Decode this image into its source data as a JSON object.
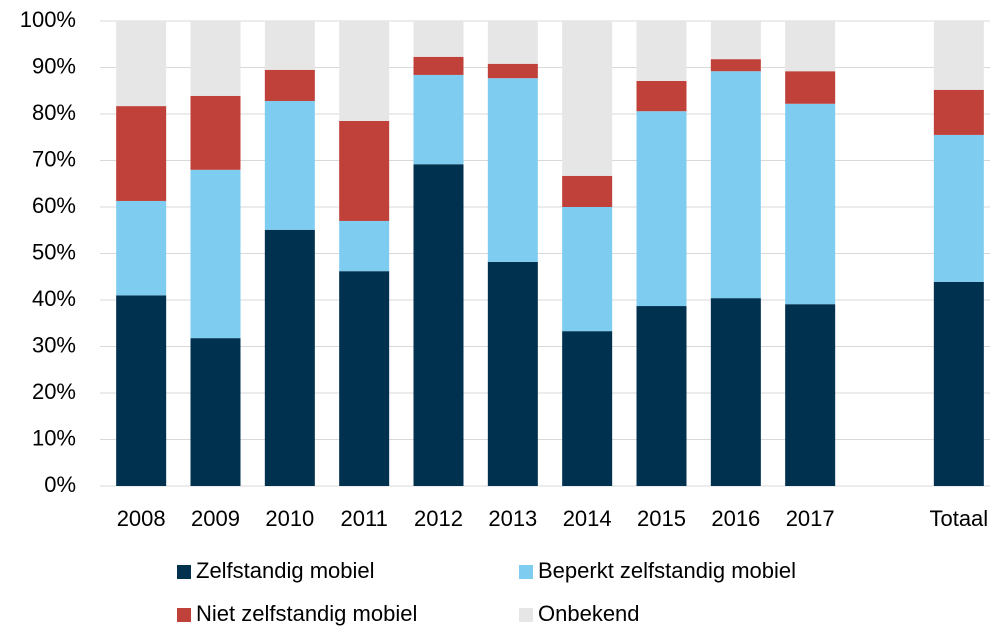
{
  "chart_data": {
    "type": "stacked_bar",
    "categories": [
      "2008",
      "2009",
      "2010",
      "2011",
      "2012",
      "2013",
      "2014",
      "2015",
      "2016",
      "2017",
      null,
      "Totaal"
    ],
    "series": [
      {
        "name": "Zelfstandig mobiel",
        "color": "#00314f",
        "values": [
          41.0,
          31.8,
          55.1,
          46.2,
          69.2,
          48.2,
          33.3,
          38.7,
          40.4,
          39.1,
          null,
          43.9
        ]
      },
      {
        "name": "Beperkt zelfstandig mobiel",
        "color": "#7ecdf1",
        "values": [
          20.3,
          36.2,
          27.7,
          10.8,
          19.2,
          39.5,
          26.7,
          41.9,
          48.8,
          43.1,
          null,
          31.6
        ]
      },
      {
        "name": "Niet zelfstandig mobiel",
        "color": "#c0413a",
        "values": [
          20.4,
          15.9,
          6.7,
          21.5,
          3.9,
          3.1,
          6.7,
          6.5,
          2.6,
          7.0,
          null,
          9.7
        ]
      },
      {
        "name": "Onbekend",
        "color": "#e6e6e6",
        "values": [
          18.3,
          16.1,
          10.5,
          21.5,
          7.7,
          9.2,
          33.3,
          12.9,
          8.2,
          10.8,
          null,
          14.8
        ]
      }
    ],
    "ylim": [
      0,
      100
    ],
    "yticks": [
      {
        "value": 0,
        "label": "0%"
      },
      {
        "value": 10,
        "label": "10%"
      },
      {
        "value": 20,
        "label": "20%"
      },
      {
        "value": 30,
        "label": "30%"
      },
      {
        "value": 40,
        "label": "40%"
      },
      {
        "value": 50,
        "label": "50%"
      },
      {
        "value": 60,
        "label": "60%"
      },
      {
        "value": 70,
        "label": "70%"
      },
      {
        "value": 80,
        "label": "80%"
      },
      {
        "value": 90,
        "label": "90%"
      },
      {
        "value": 100,
        "label": "100%"
      }
    ],
    "grid": true
  }
}
